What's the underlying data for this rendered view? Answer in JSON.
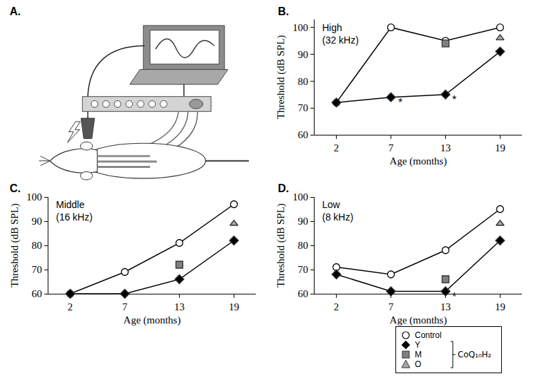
{
  "diagram": {
    "label": "A."
  },
  "chart_data": [
    {
      "type": "line",
      "label": "B.",
      "title": "High (32 kHz)",
      "x_label": "Age (months)",
      "y_label": "Threshold (dB SPL)",
      "categories": [
        "2",
        "7",
        "13",
        "19"
      ],
      "ylim": [
        60,
        103
      ],
      "yticks": [
        60,
        70,
        80,
        90,
        100
      ],
      "grid": false,
      "series": [
        {
          "name": "Control",
          "color": "#000000",
          "marker": "circle-open",
          "type": "line",
          "values": [
            72,
            100,
            95,
            100
          ]
        },
        {
          "name": "Y",
          "color": "#000000",
          "marker": "diamond",
          "type": "line",
          "values": [
            72,
            74,
            75,
            91
          ]
        },
        {
          "name": "M",
          "color": "#808080",
          "marker": "square",
          "type": "scatter",
          "values": [
            null,
            null,
            94,
            null
          ]
        },
        {
          "name": "O",
          "color": "#a6a6a6",
          "marker": "triangle-up",
          "type": "scatter",
          "values": [
            null,
            null,
            null,
            96
          ]
        }
      ],
      "annotations": [
        {
          "x": "7",
          "y": 74,
          "text": "*"
        },
        {
          "x": "13",
          "y": 75,
          "text": "*"
        }
      ]
    },
    {
      "type": "line",
      "label": "C.",
      "title": "Middle (16 kHz)",
      "x_label": "Age (months)",
      "y_label": "Threshold (dB SPL)",
      "categories": [
        "2",
        "7",
        "13",
        "19"
      ],
      "ylim": [
        60,
        100
      ],
      "yticks": [
        60,
        70,
        80,
        90,
        100
      ],
      "grid": false,
      "series": [
        {
          "name": "Control",
          "color": "#000000",
          "marker": "circle-open",
          "type": "line",
          "values": [
            60,
            69,
            81,
            97
          ]
        },
        {
          "name": "Y",
          "color": "#000000",
          "marker": "diamond",
          "type": "line",
          "values": [
            60,
            60,
            66,
            82
          ]
        },
        {
          "name": "M",
          "color": "#808080",
          "marker": "square",
          "type": "scatter",
          "values": [
            null,
            null,
            72,
            null
          ]
        },
        {
          "name": "O",
          "color": "#a6a6a6",
          "marker": "triangle-up",
          "type": "scatter",
          "values": [
            null,
            null,
            null,
            89
          ]
        }
      ]
    },
    {
      "type": "line",
      "label": "D.",
      "title": "Low (8 kHz)",
      "x_label": "Age (months)",
      "y_label": "Threshold (dB SPL)",
      "categories": [
        "2",
        "7",
        "13",
        "19"
      ],
      "ylim": [
        60,
        100
      ],
      "yticks": [
        60,
        70,
        80,
        90,
        100
      ],
      "grid": false,
      "legend": "bottom right",
      "series": [
        {
          "name": "Control",
          "color": "#000000",
          "marker": "circle-open",
          "type": "line",
          "values": [
            71,
            68,
            78,
            95
          ]
        },
        {
          "name": "Y",
          "color": "#000000",
          "marker": "diamond",
          "type": "line",
          "group": "CoQ₁₀H₂",
          "values": [
            68,
            61,
            61,
            82
          ]
        },
        {
          "name": "M",
          "color": "#808080",
          "marker": "square",
          "type": "scatter",
          "group": "CoQ₁₀H₂",
          "values": [
            null,
            null,
            66,
            null
          ]
        },
        {
          "name": "O",
          "color": "#a6a6a6",
          "marker": "triangle-up",
          "type": "scatter",
          "group": "CoQ₁₀H₂",
          "values": [
            null,
            null,
            null,
            89
          ]
        }
      ],
      "annotations": [
        {
          "x": "13",
          "y": 61,
          "text": "*"
        }
      ]
    }
  ]
}
